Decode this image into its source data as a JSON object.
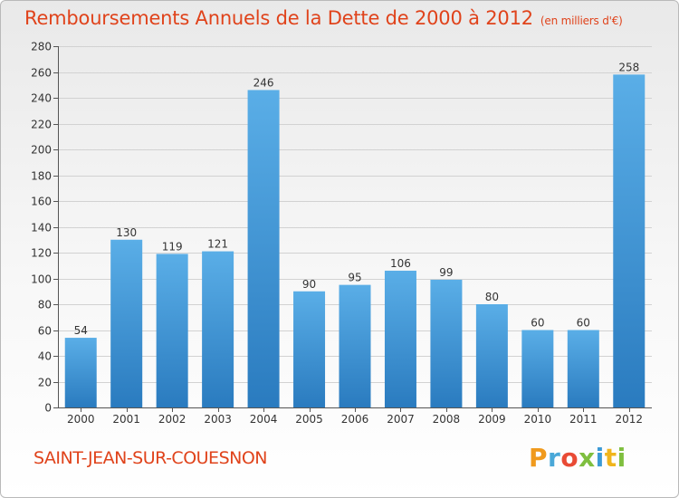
{
  "title": "Remboursements Annuels de la Dette de 2000 à 2012",
  "unit_note": "(en milliers d'€)",
  "commune": "SAINT-JEAN-SUR-COUESNON",
  "logo": {
    "letters": [
      "P",
      "r",
      "o",
      "x",
      "i",
      "t",
      "i"
    ]
  },
  "colors": {
    "title": "#e0431b",
    "bar_light": "#5aaee7",
    "bar_dark": "#2a7bbf"
  },
  "chart_data": {
    "type": "bar",
    "categories": [
      "2000",
      "2001",
      "2002",
      "2003",
      "2004",
      "2005",
      "2006",
      "2007",
      "2008",
      "2009",
      "2010",
      "2011",
      "2012"
    ],
    "values": [
      54,
      130,
      119,
      121,
      246,
      90,
      95,
      106,
      99,
      80,
      60,
      60,
      258
    ],
    "data_labels": [
      "54",
      "130",
      "119",
      "121",
      "246",
      "90",
      "95",
      "106",
      "99",
      "80",
      "60",
      "60",
      "258"
    ],
    "ylim": [
      0,
      280
    ],
    "yticks": [
      0,
      20,
      40,
      60,
      80,
      100,
      120,
      140,
      160,
      180,
      200,
      220,
      240,
      260,
      280
    ],
    "grid": true
  }
}
